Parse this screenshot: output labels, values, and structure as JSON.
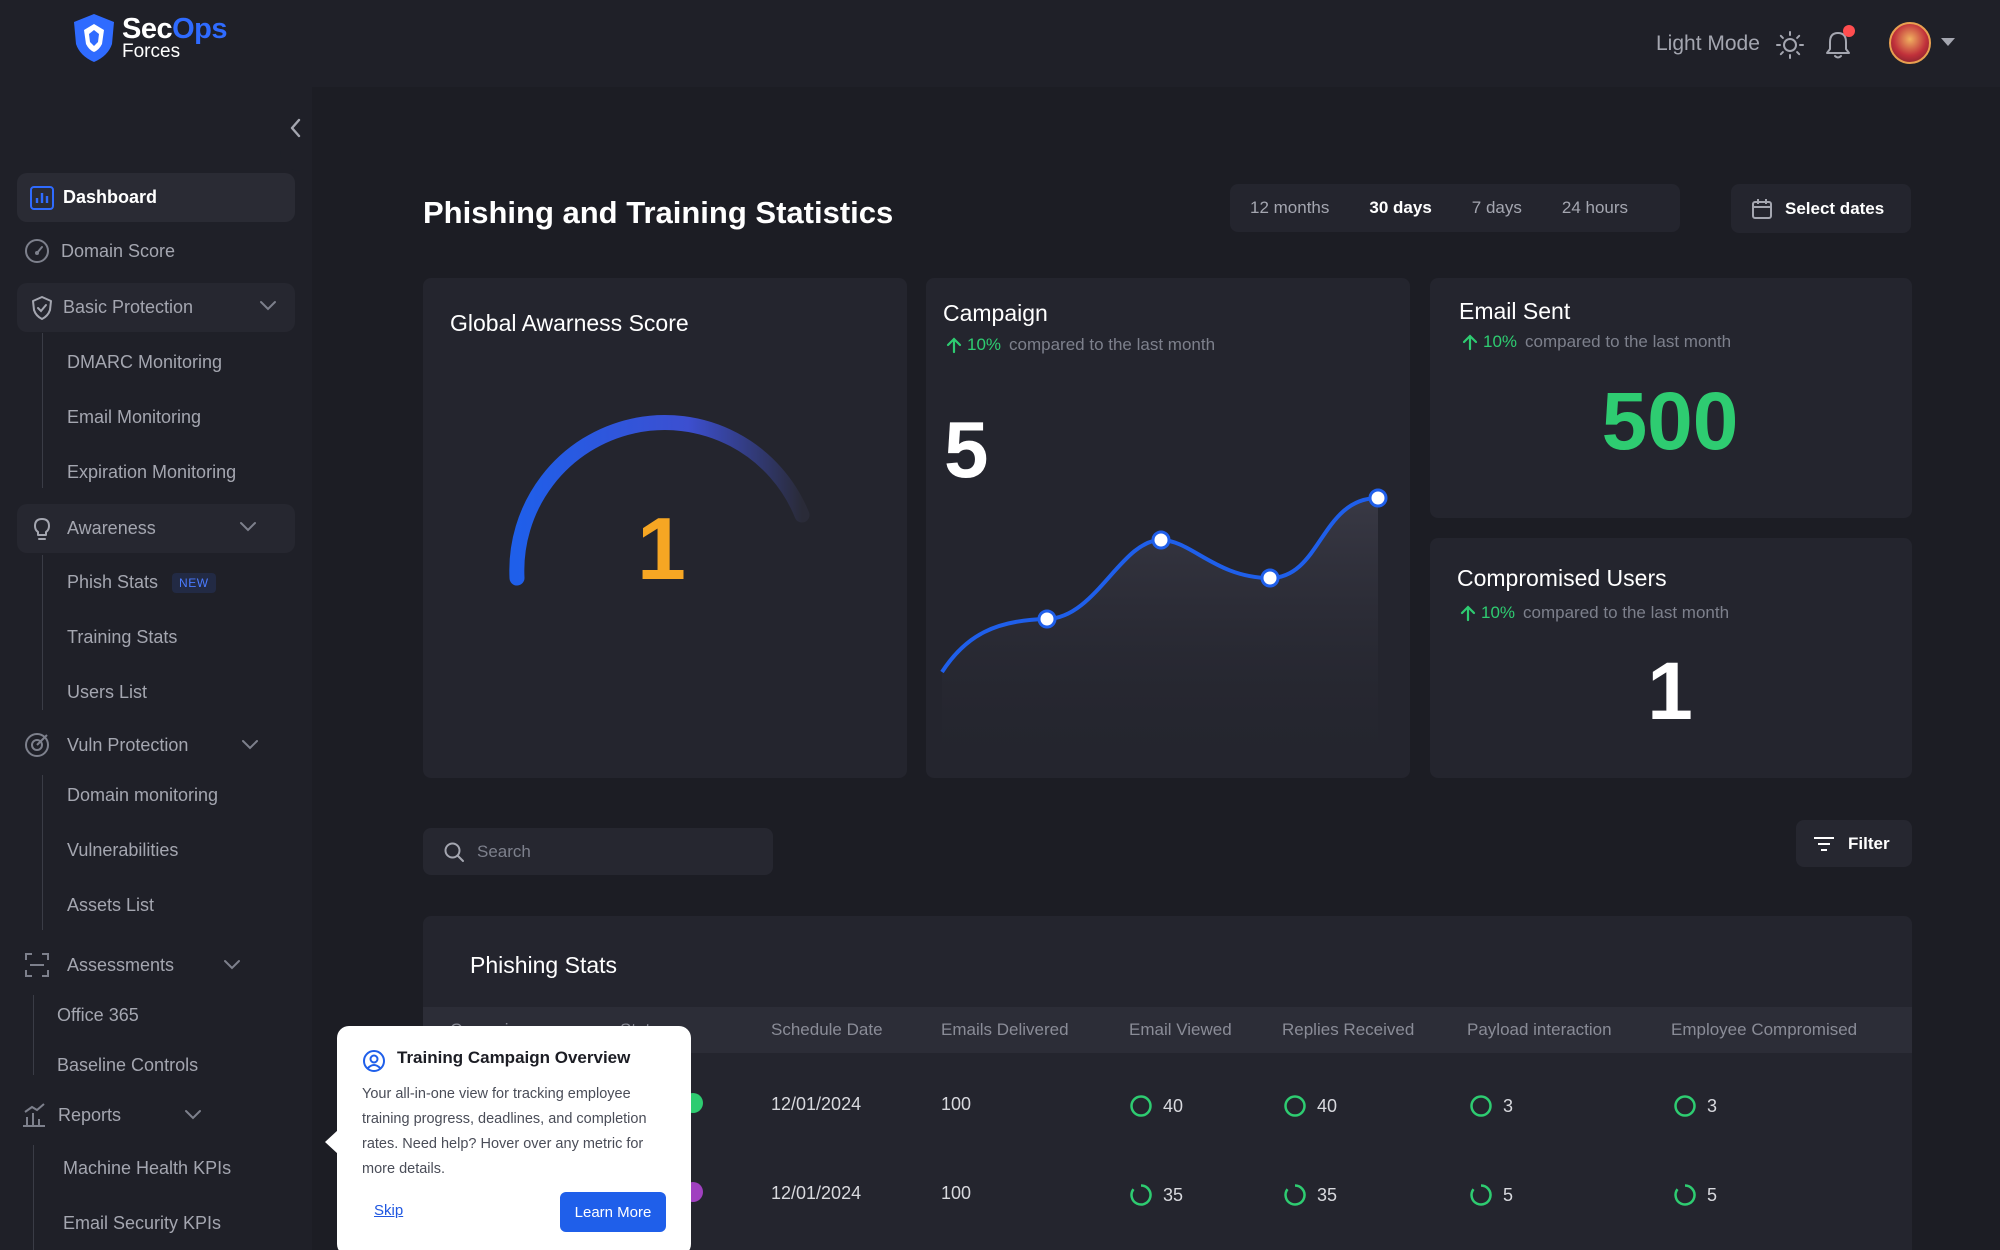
{
  "brand": {
    "name_part1": "Sec",
    "name_part2": "Ops",
    "name_line2": "Forces"
  },
  "header": {
    "theme_toggle_label": "Light Mode",
    "notification_has_unread": true
  },
  "sidebar": {
    "dashboard": "Dashboard",
    "domain_score": "Domain Score",
    "basic_protection": "Basic Protection",
    "dmarc_monitoring": "DMARC Monitoring",
    "email_monitoring": "Email Monitoring",
    "expiration_monitoring": "Expiration Monitoring",
    "awareness": "Awareness",
    "phish_stats": "Phish Stats",
    "new_badge": "NEW",
    "training_stats": "Training Stats",
    "users_list": "Users List",
    "vuln_protection": "Vuln Protection",
    "domain_monitoring": "Domain monitoring",
    "vulnerabilities": "Vulnerabilities",
    "assets_list": "Assets List",
    "assessments": "Assessments",
    "office_365": "Office 365",
    "baseline_controls": "Baseline Controls",
    "reports": "Reports",
    "machine_health_kpis": "Machine Health KPIs",
    "email_security_kpis": "Email Security KPIs"
  },
  "main": {
    "title": "Phishing and Training Statistics",
    "ranges": [
      "12 months",
      "30 days",
      "7 days",
      "24 hours"
    ],
    "active_range": "30 days",
    "select_dates": "Select dates",
    "search_placeholder": "Search",
    "filter_label": "Filter"
  },
  "cards": {
    "awareness": {
      "title": "Global Awarness Score",
      "value": "1"
    },
    "campaign": {
      "title": "Campaign",
      "delta_pct": "10%",
      "delta_text": "compared to the last month",
      "value": "5"
    },
    "email_sent": {
      "title": "Email Sent",
      "delta_pct": "10%",
      "delta_text": "compared to the last month",
      "value": "500"
    },
    "compromised": {
      "title": "Compromised Users",
      "delta_pct": "10%",
      "delta_text": "compared to the last month",
      "value": "1"
    }
  },
  "table": {
    "title": "Phishing Stats",
    "columns": [
      "Campaign",
      "Status",
      "Schedule Date",
      "Emails Delivered",
      "Email Viewed",
      "Replies Received",
      "Payload interaction",
      "Employee Compromised"
    ],
    "rows": [
      {
        "status_color": "#2ecc71",
        "date": "12/01/2024",
        "delivered": "100",
        "viewed": "40",
        "replies": "40",
        "payload": "3",
        "compromised": "3"
      },
      {
        "status_color": "#a040c0",
        "date": "12/01/2024",
        "delivered": "100",
        "viewed": "35",
        "replies": "35",
        "payload": "5",
        "compromised": "5"
      }
    ]
  },
  "popover": {
    "title": "Training Campaign Overview",
    "body": "Your all-in-one view for tracking employee training progress, deadlines, and completion rates. Need help? Hover over any metric for more details.",
    "skip": "Skip",
    "learn_more": "Learn More"
  },
  "colors": {
    "accent": "#2f6bff",
    "positive": "#2ecc71",
    "warning": "#f6a623",
    "background": "#1c1d24",
    "surface": "#24252e"
  }
}
